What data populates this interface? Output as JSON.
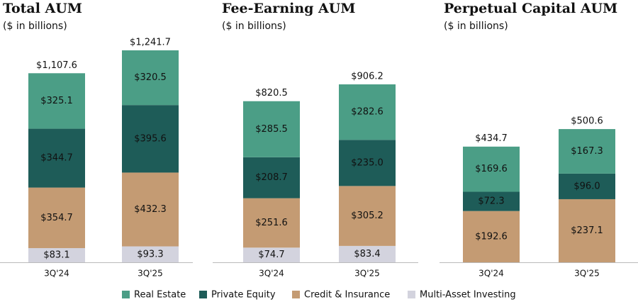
{
  "chart_data": [
    {
      "type": "stacked-bar",
      "title": "Total AUM",
      "subtitle": "($ in billions)",
      "categories": [
        "3Q'24",
        "3Q'25"
      ],
      "totals": [
        1107.6,
        1241.7
      ],
      "total_labels": [
        "$1,107.6",
        "$1,241.7"
      ],
      "series": [
        {
          "name": "Real Estate",
          "color": "#4b9e86",
          "values": [
            325.1,
            320.5
          ],
          "value_labels": [
            "$325.1",
            "$320.5"
          ]
        },
        {
          "name": "Private Equity",
          "color": "#1e5c58",
          "values": [
            344.7,
            395.6
          ],
          "value_labels": [
            "$344.7",
            "$395.6"
          ]
        },
        {
          "name": "Credit & Insurance",
          "color": "#c49b73",
          "values": [
            354.7,
            432.3
          ],
          "value_labels": [
            "$354.7",
            "$432.3"
          ]
        },
        {
          "name": "Multi-Asset Investing",
          "color": "#d3d3de",
          "values": [
            83.1,
            93.3
          ],
          "value_labels": [
            "$83.1",
            "$93.3"
          ]
        }
      ]
    },
    {
      "type": "stacked-bar",
      "title": "Fee-Earning AUM",
      "subtitle": "($ in billions)",
      "categories": [
        "3Q'24",
        "3Q'25"
      ],
      "totals": [
        820.5,
        906.2
      ],
      "total_labels": [
        "$820.5",
        "$906.2"
      ],
      "series": [
        {
          "name": "Real Estate",
          "color": "#4b9e86",
          "values": [
            285.5,
            282.6
          ],
          "value_labels": [
            "$285.5",
            "$282.6"
          ]
        },
        {
          "name": "Private Equity",
          "color": "#1e5c58",
          "values": [
            208.7,
            235.0
          ],
          "value_labels": [
            "$208.7",
            "$235.0"
          ]
        },
        {
          "name": "Credit & Insurance",
          "color": "#c49b73",
          "values": [
            251.6,
            305.2
          ],
          "value_labels": [
            "$251.6",
            "$305.2"
          ]
        },
        {
          "name": "Multi-Asset Investing",
          "color": "#d3d3de",
          "values": [
            74.7,
            83.4
          ],
          "value_labels": [
            "$74.7",
            "$83.4"
          ]
        }
      ]
    },
    {
      "type": "stacked-bar",
      "title": "Perpetual Capital AUM",
      "subtitle": "($ in billions)",
      "categories": [
        "3Q'24",
        "3Q'25"
      ],
      "totals": [
        434.7,
        500.6
      ],
      "total_labels": [
        "$434.7",
        "$500.6"
      ],
      "series": [
        {
          "name": "Real Estate",
          "color": "#4b9e86",
          "values": [
            169.6,
            167.3
          ],
          "value_labels": [
            "$169.6",
            "$167.3"
          ]
        },
        {
          "name": "Private Equity",
          "color": "#1e5c58",
          "values": [
            72.3,
            96.0
          ],
          "value_labels": [
            "$72.3",
            "$96.0"
          ]
        },
        {
          "name": "Credit & Insurance",
          "color": "#c49b73",
          "values": [
            192.6,
            237.1
          ],
          "value_labels": [
            "$192.6",
            "$237.1"
          ]
        }
      ]
    }
  ]
}
